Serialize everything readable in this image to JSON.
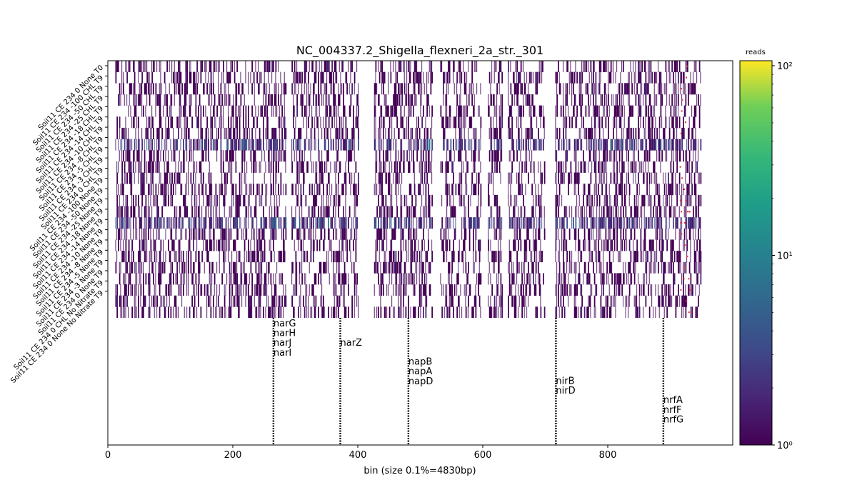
{
  "chart_data": {
    "type": "heatmap",
    "title": "NC_004337.2_Shigella_flexneri_2a_str._301",
    "xlabel": "bin (size 0.1%=4830bp)",
    "xlim": [
      0,
      1000
    ],
    "xticks": [
      0,
      200,
      400,
      600,
      800
    ],
    "rows": [
      "Soil11 CE 234 0 None T0",
      "Soil11 CE 234 -100 CHL T9",
      "Soil11 CE 234 -50 CHL T9",
      "Soil11 CE 234 -25 CHL T9",
      "Soil11 CE 234 -18 CHL T9",
      "Soil11 CE 234 -14 CHL T9",
      "Soil11 CE 234 -10 CHL T9",
      "Soil11 CE 234 -8 CHL T9",
      "Soil11 CE 234 -5 CHL T9",
      "Soil11 CE 234 -3 CHL T9",
      "Soil11 CE 234 0 CHL T9",
      "Soil11 CE 234 -100 None T9",
      "Soil11 CE 234 -50 None T9",
      "Soil11 CE 234 -25 None T9",
      "Soil11 CE 234 -18 None T9",
      "Soil11 CE 234 -14 None T9",
      "Soil11 CE 234 -10 None T9",
      "Soil11 CE 234 -8 None T9",
      "Soil11 CE 234 -5 None T9",
      "Soil11 CE 234 -3 None T9",
      "Soil11 CE 234 0 None T9",
      "Soil11 CE 234 0 CHL No Nitrate T9",
      "Soil11 CE 234 0 None No Nitrate T9"
    ],
    "colorbar": {
      "label": "reads",
      "scale": "log",
      "range": [
        1,
        100
      ],
      "tick_labels": [
        "10⁰",
        "10¹",
        "10²"
      ],
      "tick_values": [
        1,
        10,
        100
      ],
      "colormap": "viridis"
    },
    "coverage_gaps": [
      [
        0,
        12
      ],
      [
        285,
        293
      ],
      [
        402,
        426
      ],
      [
        520,
        532
      ],
      [
        598,
        607
      ],
      [
        631,
        640
      ],
      [
        700,
        716
      ],
      [
        950,
        1000
      ]
    ],
    "high_coverage_rows": [
      7,
      14
    ],
    "genes": [
      {
        "position": 265,
        "labels": [
          "narG",
          "narH",
          "narJ",
          "narI"
        ],
        "level": 0
      },
      {
        "position": 372,
        "labels": [
          "narZ"
        ],
        "level": 1
      },
      {
        "position": 481,
        "labels": [
          "napB",
          "napA",
          "napD"
        ],
        "level": 2
      },
      {
        "position": 717,
        "labels": [
          "nirB",
          "nirD"
        ],
        "level": 3
      },
      {
        "position": 889,
        "labels": [
          "nrfA",
          "nrfF",
          "nrfG"
        ],
        "level": 4
      }
    ]
  }
}
